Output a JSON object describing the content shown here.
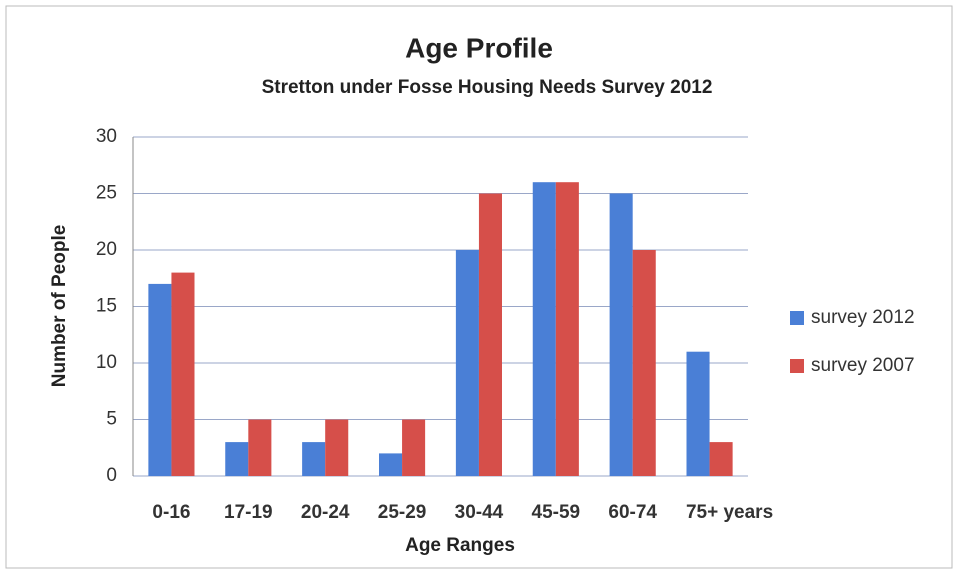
{
  "chart_data": {
    "type": "bar",
    "title": "Age Profile",
    "subtitle": "Stretton under Fosse Housing Needs Survey 2012",
    "x_label": "Age Ranges",
    "y_label": "Number of People",
    "categories": [
      "0-16",
      "17-19",
      "20-24",
      "25-29",
      "30-44",
      "45-59",
      "60-74",
      "75+ years"
    ],
    "series": [
      {
        "name": "survey 2012",
        "color": "#4a7fd6",
        "values": [
          17,
          3,
          3,
          2,
          20,
          26,
          25,
          11
        ]
      },
      {
        "name": "survey 2007",
        "color": "#d64f4a",
        "values": [
          18,
          5,
          5,
          5,
          25,
          26,
          20,
          3
        ]
      }
    ],
    "ylim": [
      0,
      30
    ],
    "yticks": [
      0,
      5,
      10,
      15,
      20,
      25,
      30
    ],
    "grid": true,
    "legend": "right"
  }
}
